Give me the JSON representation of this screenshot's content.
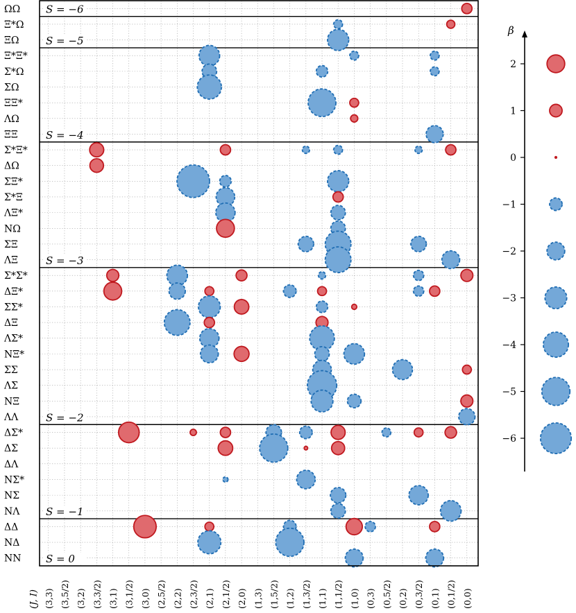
{
  "chart_data": {
    "type": "scatter",
    "subtype": "bubble-grid",
    "title": "",
    "x_axis": {
      "title": "(J, I)",
      "categories": [
        "(3,3)",
        "(3,5/2)",
        "(3,2)",
        "(3,3/2)",
        "(3,1)",
        "(3,1/2)",
        "(3,0)",
        "(2,5/2)",
        "(2,2)",
        "(2,3/2)",
        "(2,1)",
        "(2,1/2)",
        "(2,0)",
        "(1,3)",
        "(1,5/2)",
        "(1,2)",
        "(1,3/2)",
        "(1,1)",
        "(1,1/2)",
        "(1,0)",
        "(0,3)",
        "(0,5/2)",
        "(0,2)",
        "(0,3/2)",
        "(0,1)",
        "(0,1/2)",
        "(0,0)"
      ]
    },
    "y_axis": {
      "categories": [
        "ΩΩ",
        "Ξ*Ω",
        "ΞΩ",
        "Ξ*Ξ*",
        "Σ*Ω",
        "ΣΩ",
        "ΞΞ*",
        "ΛΩ",
        "ΞΞ",
        "Σ*Ξ*",
        "ΔΩ",
        "ΣΞ*",
        "Σ*Ξ",
        "ΛΞ*",
        "NΩ",
        "ΣΞ",
        "ΛΞ",
        "Σ*Σ*",
        "ΔΞ*",
        "ΣΣ*",
        "ΔΞ",
        "ΛΣ*",
        "NΞ*",
        "ΣΣ",
        "ΛΣ",
        "NΞ",
        "ΛΛ",
        "ΔΣ*",
        "ΔΣ",
        "ΔΛ",
        "NΣ*",
        "NΣ",
        "NΛ",
        "ΔΔ",
        "NΔ",
        "NN"
      ]
    },
    "sectors": [
      {
        "label": "S = −6",
        "rows": [
          "ΩΩ"
        ]
      },
      {
        "label": "S = −5",
        "rows": [
          "Ξ*Ω",
          "ΞΩ"
        ]
      },
      {
        "label": "S = −4",
        "rows": [
          "Ξ*Ξ*",
          "Σ*Ω",
          "ΣΩ",
          "ΞΞ*",
          "ΛΩ",
          "ΞΞ"
        ]
      },
      {
        "label": "S = −3",
        "rows": [
          "Σ*Ξ*",
          "ΔΩ",
          "ΣΞ*",
          "Σ*Ξ",
          "ΛΞ*",
          "NΩ",
          "ΣΞ",
          "ΛΞ"
        ]
      },
      {
        "label": "S = −2",
        "rows": [
          "Σ*Σ*",
          "ΔΞ*",
          "ΣΣ*",
          "ΔΞ",
          "ΛΣ*",
          "NΞ*",
          "ΣΣ",
          "ΛΣ",
          "NΞ",
          "ΛΛ"
        ]
      },
      {
        "label": "S = −1",
        "rows": [
          "ΔΣ*",
          "ΔΣ",
          "ΔΛ",
          "NΣ*",
          "NΣ",
          "NΛ"
        ]
      },
      {
        "label": "S = 0",
        "rows": [
          "ΔΔ",
          "NΔ",
          "NN"
        ]
      }
    ],
    "legend": {
      "title": "β",
      "placement": "right",
      "ticks": [
        2,
        1,
        0,
        -1,
        -2,
        -3,
        -4,
        -5,
        -6
      ],
      "items": [
        2,
        1,
        0,
        -1,
        -2,
        -3,
        -4,
        -5,
        -6
      ],
      "positive_color": "#e06a6e",
      "positive_edge": "#c0191f",
      "negative_color": "#74a8d8",
      "negative_edge": "#1f6db3"
    },
    "points": [
      {
        "row": "ΩΩ",
        "col": "(0,0)",
        "beta": 0.8
      },
      {
        "row": "Ξ*Ω",
        "col": "(1,1/2)",
        "beta": -0.6
      },
      {
        "row": "Ξ*Ω",
        "col": "(0,1/2)",
        "beta": 0.5
      },
      {
        "row": "ΞΩ",
        "col": "(1,1/2)",
        "beta": -3.4
      },
      {
        "row": "Ξ*Ξ*",
        "col": "(2,1)",
        "beta": -3.2
      },
      {
        "row": "Ξ*Ξ*",
        "col": "(1,0)",
        "beta": -0.6
      },
      {
        "row": "Ξ*Ξ*",
        "col": "(0,1)",
        "beta": -0.6
      },
      {
        "row": "Σ*Ω",
        "col": "(2,1)",
        "beta": -1.6
      },
      {
        "row": "Σ*Ω",
        "col": "(1,1)",
        "beta": -1.0
      },
      {
        "row": "Σ*Ω",
        "col": "(0,1)",
        "beta": -0.6
      },
      {
        "row": "ΣΩ",
        "col": "(2,1)",
        "beta": -4.4
      },
      {
        "row": "ΞΞ*",
        "col": "(1,1)",
        "beta": -5.8
      },
      {
        "row": "ΞΞ*",
        "col": "(1,0)",
        "beta": 0.6
      },
      {
        "row": "ΛΩ",
        "col": "(1,0)",
        "beta": 0.4
      },
      {
        "row": "ΞΞ",
        "col": "(0,1)",
        "beta": -2.2
      },
      {
        "row": "Σ*Ξ*",
        "col": "(3,3/2)",
        "beta": 1.5
      },
      {
        "row": "Σ*Ξ*",
        "col": "(2,1/2)",
        "beta": 0.8
      },
      {
        "row": "Σ*Ξ*",
        "col": "(1,3/2)",
        "beta": -0.4
      },
      {
        "row": "Σ*Ξ*",
        "col": "(1,1/2)",
        "beta": -0.6
      },
      {
        "row": "Σ*Ξ*",
        "col": "(0,3/2)",
        "beta": -0.4
      },
      {
        "row": "Σ*Ξ*",
        "col": "(0,1/2)",
        "beta": 0.8
      },
      {
        "row": "ΔΩ",
        "col": "(3,3/2)",
        "beta": 1.4
      },
      {
        "row": "ΣΞ*",
        "col": "(2,3/2)",
        "beta": -8.0
      },
      {
        "row": "ΣΞ*",
        "col": "(2,1/2)",
        "beta": -1.0
      },
      {
        "row": "ΣΞ*",
        "col": "(1,1/2)",
        "beta": -3.4
      },
      {
        "row": "Σ*Ξ",
        "col": "(2,1/2)",
        "beta": -2.6
      },
      {
        "row": "Σ*Ξ",
        "col": "(1,1/2)",
        "beta": 0.8
      },
      {
        "row": "ΛΞ*",
        "col": "(2,1/2)",
        "beta": -2.8
      },
      {
        "row": "ΛΞ*",
        "col": "(1,1/2)",
        "beta": -1.6
      },
      {
        "row": "NΩ",
        "col": "(2,1/2)",
        "beta": 2.4
      },
      {
        "row": "NΩ",
        "col": "(1,1/2)",
        "beta": -1.6
      },
      {
        "row": "ΣΞ",
        "col": "(1,3/2)",
        "beta": -1.8
      },
      {
        "row": "ΣΞ",
        "col": "(1,1/2)",
        "beta": -5.0
      },
      {
        "row": "ΣΞ",
        "col": "(0,3/2)",
        "beta": -1.8
      },
      {
        "row": "ΛΞ",
        "col": "(1,1/2)",
        "beta": -5.0
      },
      {
        "row": "ΛΞ",
        "col": "(0,1/2)",
        "beta": -2.4
      },
      {
        "row": "Σ*Σ*",
        "col": "(3,1)",
        "beta": 1.1
      },
      {
        "row": "Σ*Σ*",
        "col": "(2,2)",
        "beta": -3.2
      },
      {
        "row": "Σ*Σ*",
        "col": "(2,0)",
        "beta": 0.9
      },
      {
        "row": "Σ*Σ*",
        "col": "(1,1)",
        "beta": -0.4
      },
      {
        "row": "Σ*Σ*",
        "col": "(0,3/2)",
        "beta": -0.8
      },
      {
        "row": "Σ*Σ*",
        "col": "(0,0)",
        "beta": 1.1
      },
      {
        "row": "ΔΞ*",
        "col": "(3,1)",
        "beta": 2.4
      },
      {
        "row": "ΔΞ*",
        "col": "(2,2)",
        "beta": -2.0
      },
      {
        "row": "ΔΞ*",
        "col": "(2,1)",
        "beta": 0.6
      },
      {
        "row": "ΔΞ*",
        "col": "(1,2)",
        "beta": -1.2
      },
      {
        "row": "ΔΞ*",
        "col": "(1,1)",
        "beta": 0.6
      },
      {
        "row": "ΔΞ*",
        "col": "(0,3/2)",
        "beta": -0.8
      },
      {
        "row": "ΔΞ*",
        "col": "(0,1)",
        "beta": 0.8
      },
      {
        "row": "ΣΣ*",
        "col": "(2,1)",
        "beta": -3.6
      },
      {
        "row": "ΣΣ*",
        "col": "(2,0)",
        "beta": 1.6
      },
      {
        "row": "ΣΣ*",
        "col": "(1,1)",
        "beta": -1.0
      },
      {
        "row": "ΣΣ*",
        "col": "(1,0)",
        "beta": 0.2
      },
      {
        "row": "ΔΞ",
        "col": "(2,2)",
        "beta": -5.0
      },
      {
        "row": "ΔΞ",
        "col": "(2,1)",
        "beta": 0.8
      },
      {
        "row": "ΔΞ",
        "col": "(1,1)",
        "beta": 1.1
      },
      {
        "row": "ΛΣ*",
        "col": "(2,1)",
        "beta": -2.8
      },
      {
        "row": "ΛΣ*",
        "col": "(1,1)",
        "beta": -4.6
      },
      {
        "row": "NΞ*",
        "col": "(2,1)",
        "beta": -2.4
      },
      {
        "row": "NΞ*",
        "col": "(2,0)",
        "beta": 1.7
      },
      {
        "row": "NΞ*",
        "col": "(1,1)",
        "beta": -1.6
      },
      {
        "row": "NΞ*",
        "col": "(1,0)",
        "beta": -3.2
      },
      {
        "row": "ΣΣ",
        "col": "(1,1)",
        "beta": -2.6
      },
      {
        "row": "ΣΣ",
        "col": "(0,2)",
        "beta": -3.0
      },
      {
        "row": "ΣΣ",
        "col": "(0,0)",
        "beta": 0.6
      },
      {
        "row": "ΛΣ",
        "col": "(1,1)",
        "beta": -6.5
      },
      {
        "row": "NΞ",
        "col": "(1,1)",
        "beta": -3.6
      },
      {
        "row": "NΞ",
        "col": "(1,0)",
        "beta": -1.4
      },
      {
        "row": "NΞ",
        "col": "(0,0)",
        "beta": 1.1
      },
      {
        "row": "ΛΛ",
        "col": "(0,0)",
        "beta": -2.0
      },
      {
        "row": "ΔΣ*",
        "col": "(3,1/2)",
        "beta": 3.2
      },
      {
        "row": "ΔΣ*",
        "col": "(2,3/2)",
        "beta": 0.3
      },
      {
        "row": "ΔΣ*",
        "col": "(2,1/2)",
        "beta": 0.8
      },
      {
        "row": "ΔΣ*",
        "col": "(1,5/2)",
        "beta": -1.8
      },
      {
        "row": "ΔΣ*",
        "col": "(1,3/2)",
        "beta": -1.2
      },
      {
        "row": "ΔΣ*",
        "col": "(1,1/2)",
        "beta": 1.5
      },
      {
        "row": "ΔΣ*",
        "col": "(0,5/2)",
        "beta": -0.6
      },
      {
        "row": "ΔΣ*",
        "col": "(0,3/2)",
        "beta": 0.6
      },
      {
        "row": "ΔΣ*",
        "col": "(0,1/2)",
        "beta": 1.0
      },
      {
        "row": "ΔΣ",
        "col": "(2,1/2)",
        "beta": 1.6
      },
      {
        "row": "ΔΣ",
        "col": "(1,5/2)",
        "beta": -6.0
      },
      {
        "row": "ΔΣ",
        "col": "(1,3/2)",
        "beta": 0.1
      },
      {
        "row": "ΔΣ",
        "col": "(1,1/2)",
        "beta": 1.3
      },
      {
        "row": "NΣ*",
        "col": "(2,1/2)",
        "beta": -0.2
      },
      {
        "row": "NΣ*",
        "col": "(1,3/2)",
        "beta": -2.6
      },
      {
        "row": "NΣ",
        "col": "(1,1/2)",
        "beta": -1.8
      },
      {
        "row": "NΣ",
        "col": "(0,3/2)",
        "beta": -2.8
      },
      {
        "row": "NΛ",
        "col": "(1,1/2)",
        "beta": -1.6
      },
      {
        "row": "NΛ",
        "col": "(0,1/2)",
        "beta": -3.2
      },
      {
        "row": "ΔΔ",
        "col": "(3,0)",
        "beta": 3.8
      },
      {
        "row": "ΔΔ",
        "col": "(2,1)",
        "beta": 0.6
      },
      {
        "row": "ΔΔ",
        "col": "(1,2)",
        "beta": -1.2
      },
      {
        "row": "ΔΔ",
        "col": "(1,0)",
        "beta": 2.0
      },
      {
        "row": "ΔΔ",
        "col": "(0,3)",
        "beta": -0.8
      },
      {
        "row": "ΔΔ",
        "col": "(0,1)",
        "beta": 0.8
      },
      {
        "row": "NΔ",
        "col": "(2,1)",
        "beta": -4.0
      },
      {
        "row": "NΔ",
        "col": "(1,2)",
        "beta": -6.0
      },
      {
        "row": "NN",
        "col": "(1,0)",
        "beta": -2.4
      },
      {
        "row": "NN",
        "col": "(0,1)",
        "beta": -2.4
      }
    ]
  }
}
